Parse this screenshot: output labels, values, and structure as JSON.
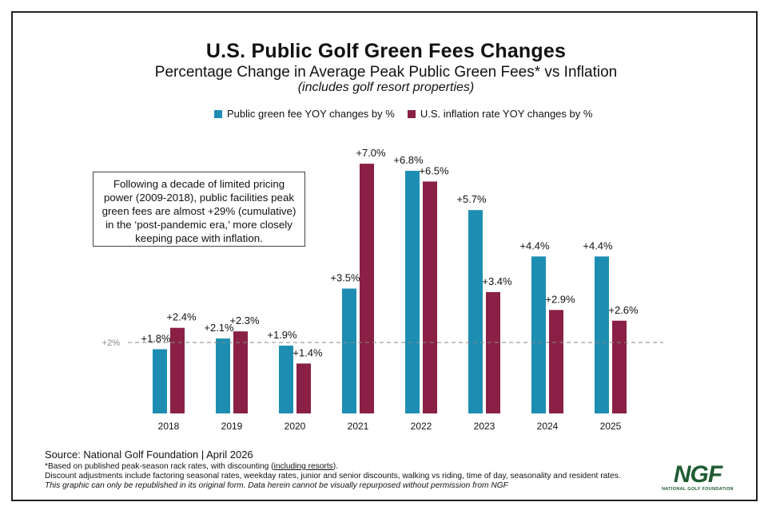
{
  "title": "U.S. Public Golf Green Fees Changes",
  "subtitle": "Percentage Change in Average Peak Public Green Fees* vs Inflation",
  "subtitle_note": "(includes golf resort properties)",
  "callout": [
    "Following a decade of limited pricing",
    "power (2009-2018), public facilities peak",
    "green fees are almost +29% (cumulative)",
    "in the ‘post-pandemic era,’ more closely",
    "keeping pace with inflation."
  ],
  "footer": {
    "source": "Source: National Golf Foundation | April 2026",
    "note_prefix": "*Based on published peak-season rack rates, with discounting (",
    "note_link": "including resorts",
    "note_suffix": ").",
    "note2": "Discount adjustments include factoring seasonal rates, weekday rates, junior and senior discounts, walking vs riding, time of day, seasonality and resident rates.",
    "note3": "This graphic can only be republished in its original form. Data herein cannot be visually repurposed without permission from NGF"
  },
  "logo": {
    "text": "NGF",
    "subtext": "NATIONAL GOLF FOUNDATION"
  },
  "chart_data": {
    "type": "bar",
    "categories": [
      "2018",
      "2019",
      "2020",
      "2021",
      "2022",
      "2023",
      "2024",
      "2025"
    ],
    "series": [
      {
        "name": "Public green fee YOY changes by %",
        "color": "#1d8eb2",
        "values": [
          1.8,
          2.1,
          1.9,
          3.5,
          6.8,
          5.7,
          4.4,
          4.4
        ],
        "labels": [
          "+1.8%",
          "+2.1%",
          "+1.9%",
          "+3.5%",
          "+6.8%",
          "+5.7%",
          "+4.4%",
          "+4.4%"
        ]
      },
      {
        "name": "U.S. inflation rate YOY changes by %",
        "color": "#8a2045",
        "values": [
          2.4,
          2.3,
          1.4,
          7.0,
          6.5,
          3.4,
          2.9,
          2.6
        ],
        "labels": [
          "+2.4%",
          "+2.3%",
          "+1.4%",
          "+7.0%",
          "+6.5%",
          "+3.4%",
          "+2.9%",
          "+2.6%"
        ]
      }
    ],
    "reference_line": {
      "value": 2,
      "label": "+2%"
    },
    "ylim": [
      0,
      7.5
    ],
    "legend_position": "top",
    "grid": false
  }
}
